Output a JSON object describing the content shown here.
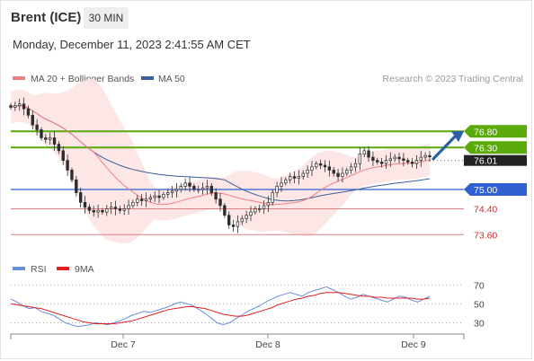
{
  "header": {
    "title": "Brent (ICE)",
    "timeframe": "30 MIN",
    "timestamp": "Monday, December 11, 2023 2:41:55 AM CET"
  },
  "legend": {
    "ma20_bb": "MA 20 + Bollinger Bands",
    "ma50": "MA 50",
    "credit": "Research © 2023 Trading Central",
    "rsi": "RSI",
    "rsi_ma": "9MA"
  },
  "colors": {
    "ma20": "#f08080",
    "bollinger_fill": "#fde3e3",
    "ma50": "#3a5f9a",
    "resistance": "#5aaa0a",
    "support_main": "#2f5fd0",
    "support_minor": "#e88080",
    "candle": "#2d2d2d",
    "arrow": "#2b5fa6",
    "rsi_line": "#6a8fdd",
    "rsi_ma_line": "#e02020"
  },
  "chart_data": [
    {
      "type": "candlestick",
      "ylim": [
        72.8,
        78.2
      ],
      "x_ticks": [
        "Dec 7",
        "Dec 8",
        "Dec 9"
      ],
      "levels": [
        {
          "value": 76.8,
          "label": "76.80",
          "kind": "resistance"
        },
        {
          "value": 76.3,
          "label": "76.30",
          "kind": "resistance"
        },
        {
          "value": 75.0,
          "label": "75.00",
          "kind": "pivot"
        },
        {
          "value": 74.4,
          "label": "74.40",
          "kind": "support"
        },
        {
          "value": 73.6,
          "label": "73.60",
          "kind": "support"
        }
      ],
      "last_price": {
        "value": 76.01,
        "label": "76.01"
      },
      "close": [
        77.55,
        77.6,
        77.65,
        77.5,
        77.3,
        77.0,
        76.85,
        76.6,
        76.55,
        76.6,
        76.4,
        76.2,
        75.9,
        75.6,
        75.3,
        74.9,
        74.6,
        74.45,
        74.35,
        74.3,
        74.35,
        74.3,
        74.4,
        74.45,
        74.4,
        74.35,
        74.4,
        74.5,
        74.6,
        74.7,
        74.65,
        74.7,
        74.75,
        74.8,
        74.75,
        74.85,
        74.9,
        74.95,
        75.0,
        75.1,
        75.2,
        75.1,
        75.0,
        75.0,
        75.05,
        75.1,
        74.9,
        74.7,
        74.5,
        74.2,
        73.9,
        73.85,
        74.0,
        74.1,
        74.2,
        74.3,
        74.4,
        74.4,
        74.5,
        74.6,
        74.9,
        75.1,
        75.2,
        75.3,
        75.4,
        75.35,
        75.4,
        75.5,
        75.6,
        75.7,
        75.8,
        75.75,
        75.7,
        75.6,
        75.5,
        75.4,
        75.5,
        75.6,
        75.7,
        75.8,
        76.1,
        76.2,
        76.0,
        75.9,
        75.85,
        75.8,
        75.9,
        75.95,
        76.0,
        75.95,
        75.9,
        75.85,
        75.8,
        75.9,
        76.0,
        76.05,
        76.01
      ]
    },
    {
      "type": "line",
      "title": "RSI",
      "ylim": [
        20,
        75
      ],
      "y_ticks": [
        70,
        50,
        30
      ],
      "series": [
        {
          "name": "RSI",
          "values": [
            55,
            52,
            48,
            45,
            46,
            42,
            40,
            38,
            34,
            30,
            28,
            26,
            27,
            28,
            30,
            29,
            28,
            30,
            32,
            35,
            38,
            40,
            42,
            41,
            43,
            45,
            47,
            50,
            52,
            50,
            48,
            44,
            40,
            35,
            30,
            28,
            30,
            34,
            38,
            42,
            45,
            48,
            52,
            55,
            58,
            60,
            62,
            60,
            58,
            62,
            64,
            66,
            68,
            65,
            62,
            58,
            55,
            57,
            60,
            58,
            56,
            54,
            52,
            55,
            58,
            57,
            54,
            52,
            55,
            58
          ]
        },
        {
          "name": "9MA",
          "values": [
            50,
            49,
            48,
            47,
            46,
            45,
            43,
            41,
            39,
            37,
            35,
            33,
            31,
            30,
            29,
            29,
            29,
            29,
            30,
            31,
            32,
            34,
            36,
            38,
            40,
            42,
            44,
            45,
            46,
            47,
            47,
            46,
            45,
            43,
            41,
            39,
            38,
            37,
            37,
            38,
            40,
            42,
            44,
            46,
            49,
            51,
            53,
            55,
            56,
            58,
            59,
            61,
            62,
            62,
            62,
            61,
            60,
            59,
            58,
            58,
            57,
            57,
            56,
            56,
            56,
            56,
            56,
            55,
            55,
            56
          ]
        }
      ]
    }
  ]
}
